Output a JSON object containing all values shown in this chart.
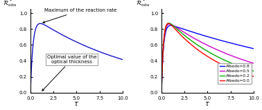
{
  "left_curve": {
    "annotation_peak": "Maximum of the reaction rate",
    "annotation_opt": "Optimal value of the\noptical thickness",
    "ylabel": "$\\mathcal{R}^*_{obs}$",
    "xlabel": "$\\tau$",
    "color": "#1414cc"
  },
  "right_curves": {
    "ylabel": "$\\mathcal{R}^*_{obs}$",
    "xlabel": "$\\tau$",
    "albedo_values": [
      0.8,
      0.5,
      0.2,
      0.0
    ],
    "colors": [
      "#0000ff",
      "#cc00cc",
      "#00aa00",
      "#ff0000"
    ],
    "labels": [
      "Albedo=0.8",
      "Albedo=0.5",
      "Albedo=0.2",
      "Albedo=0.0"
    ]
  },
  "ylim": [
    0.0,
    1.05
  ],
  "xlim": [
    0,
    10
  ],
  "yticks": [
    0.0,
    0.2,
    0.4,
    0.6,
    0.8,
    1.0
  ],
  "xticks": [
    0,
    2.5,
    5,
    7.5,
    10
  ]
}
